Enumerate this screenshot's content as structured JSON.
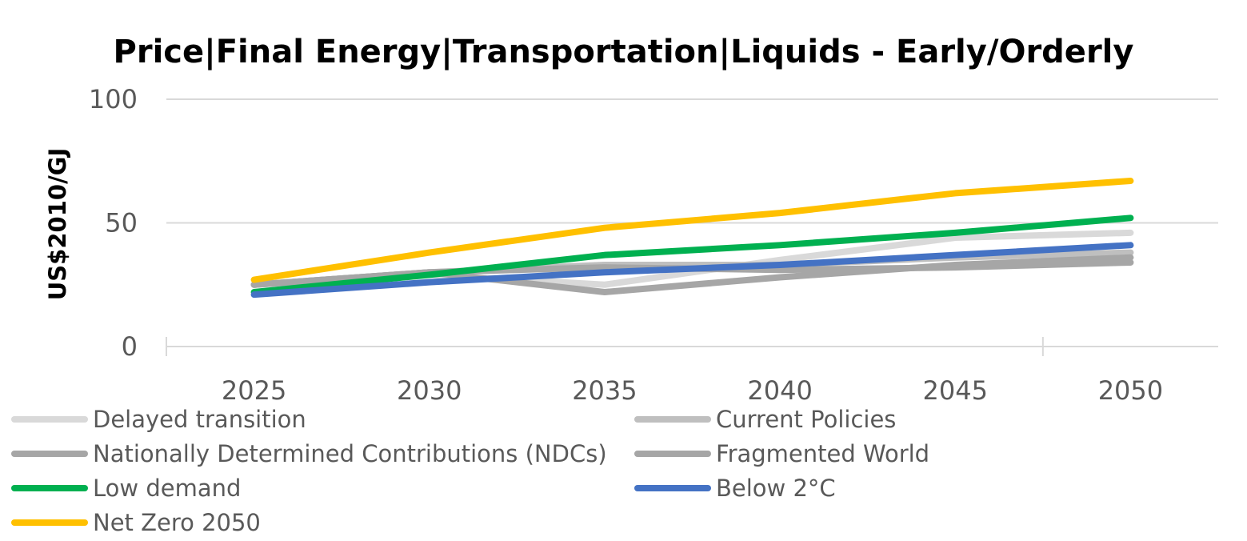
{
  "chart_data": {
    "type": "line",
    "title": "Price|Final Energy|Transportation|Liquids - Early/Orderly",
    "ylabel": "US$2010/GJ",
    "xlabel": "",
    "x": [
      "2025",
      "2030",
      "2035",
      "2040",
      "2045",
      "2050"
    ],
    "ylim": [
      0,
      100
    ],
    "yticks": [
      "0",
      "50",
      "100"
    ],
    "grid": true,
    "legend_position": "bottom",
    "series": [
      {
        "name": "Delayed transition",
        "color": "#d9d9d9",
        "values": [
          25,
          29,
          25,
          35,
          44,
          46
        ]
      },
      {
        "name": "Current Policies",
        "color": "#bfbfbf",
        "values": [
          25,
          30,
          33,
          33,
          36,
          38
        ]
      },
      {
        "name": "Nationally Determined Contributions (NDCs)",
        "color": "#a6a6a6",
        "values": [
          25,
          30,
          22,
          28,
          33,
          36
        ]
      },
      {
        "name": "Fragmented World",
        "color": "#a6a6a6",
        "values": [
          25,
          30,
          32,
          31,
          32,
          34
        ]
      },
      {
        "name": "Low demand",
        "color": "#00b050",
        "values": [
          22,
          29,
          37,
          41,
          46,
          52
        ]
      },
      {
        "name": "Below 2°C",
        "color": "#4472c4",
        "values": [
          21,
          26,
          30,
          33,
          37,
          41
        ]
      },
      {
        "name": "Net Zero 2050",
        "color": "#ffc000",
        "values": [
          27,
          38,
          48,
          54,
          62,
          67
        ]
      }
    ]
  }
}
